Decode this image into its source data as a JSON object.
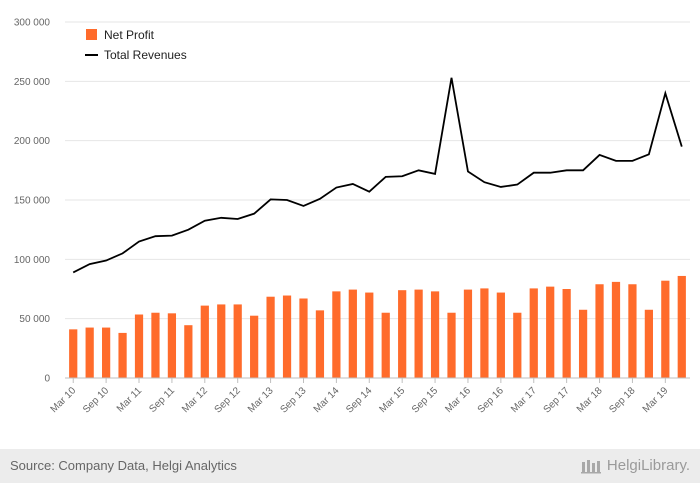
{
  "chart_data": {
    "type": "bar",
    "title": "",
    "xlabel": "",
    "ylabel": "",
    "ylim": [
      0,
      300000
    ],
    "yticks": [
      0,
      50000,
      100000,
      150000,
      200000,
      250000,
      300000
    ],
    "ytick_labels": [
      "0",
      "50 000",
      "100 000",
      "150 000",
      "200 000",
      "250 000",
      "300 000"
    ],
    "grid": true,
    "legend_position": "top-left",
    "categories": [
      "Mar 10",
      "Jun 10",
      "Sep 10",
      "Dec 10",
      "Mar 11",
      "Jun 11",
      "Sep 11",
      "Dec 11",
      "Mar 12",
      "Jun 12",
      "Sep 12",
      "Dec 12",
      "Mar 13",
      "Jun 13",
      "Sep 13",
      "Dec 13",
      "Mar 14",
      "Jun 14",
      "Sep 14",
      "Dec 14",
      "Mar 15",
      "Jun 15",
      "Sep 15",
      "Dec 15",
      "Mar 16",
      "Jun 16",
      "Sep 16",
      "Dec 16",
      "Mar 17",
      "Jun 17",
      "Sep 17",
      "Dec 17",
      "Mar 18",
      "Jun 18",
      "Sep 18",
      "Dec 18",
      "Mar 19",
      "Jun 19"
    ],
    "xtick_labels": [
      "Mar 10",
      "Sep 10",
      "Mar 11",
      "Sep 11",
      "Mar 12",
      "Sep 12",
      "Mar 13",
      "Sep 13",
      "Mar 14",
      "Sep 14",
      "Mar 15",
      "Sep 15",
      "Mar 16",
      "Sep 16",
      "Mar 17",
      "Sep 17",
      "Mar 18",
      "Sep 18",
      "Mar 19"
    ],
    "series": [
      {
        "name": "Net Profit",
        "type": "bar",
        "color": "#ff6b2b",
        "values": [
          41000,
          42500,
          42500,
          38000,
          53500,
          55000,
          54500,
          44500,
          61000,
          62000,
          62000,
          52500,
          68500,
          69500,
          67000,
          57000,
          73000,
          74500,
          72000,
          55000,
          74000,
          74500,
          73000,
          55000,
          74500,
          75500,
          72000,
          55000,
          75500,
          77000,
          75000,
          57500,
          79000,
          81000,
          79000,
          57500,
          82000,
          86000
        ]
      },
      {
        "name": "Total Revenues",
        "type": "line",
        "color": "#000000",
        "values": [
          89000,
          96000,
          99000,
          105000,
          115000,
          119500,
          120000,
          125000,
          132500,
          135000,
          134000,
          138500,
          150500,
          150000,
          145000,
          151000,
          160500,
          163500,
          157000,
          169500,
          170000,
          175000,
          172000,
          253000,
          174000,
          165000,
          161000,
          163000,
          173000,
          173000,
          175000,
          175000,
          188000,
          183000,
          183000,
          188500,
          240000,
          195000
        ]
      }
    ]
  },
  "legend": {
    "items": [
      {
        "label": "Net Profit",
        "color": "#ff6b2b",
        "shape": "square"
      },
      {
        "label": "Total Revenues",
        "color": "#000000",
        "shape": "line"
      }
    ]
  },
  "footer": {
    "source": "Source: Company Data, Helgi Analytics",
    "brand": "HelgiLibrary."
  }
}
